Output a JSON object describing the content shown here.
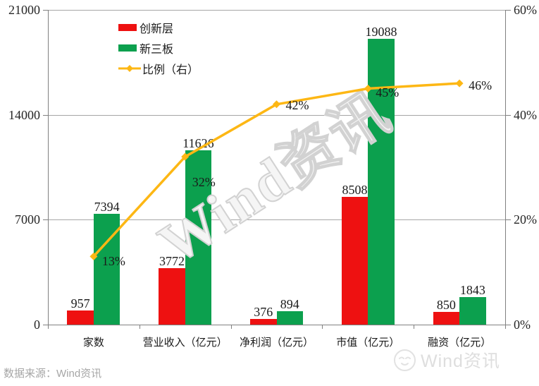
{
  "chart_data": {
    "type": "bar",
    "categories": [
      "家数",
      "营业收入（亿元）",
      "净利润（亿元）",
      "市值（亿元）",
      "融资（亿元）"
    ],
    "series": [
      {
        "name": "创新层",
        "type": "bar",
        "axis": "left",
        "color": "#ee1111",
        "values": [
          957,
          3772,
          376,
          8508,
          850
        ]
      },
      {
        "name": "新三板",
        "type": "bar",
        "axis": "left",
        "color": "#0ca04e",
        "values": [
          7394,
          11626,
          894,
          19088,
          1843
        ]
      },
      {
        "name": "比例（右）",
        "type": "line",
        "axis": "right",
        "color": "#fdb714",
        "values": [
          13,
          32,
          42,
          45,
          46
        ],
        "point_labels": [
          "13%",
          "32%",
          "42%",
          "45%",
          "46%"
        ]
      }
    ],
    "left_axis": {
      "min": 0,
      "max": 21000,
      "ticks": [
        0,
        7000,
        14000,
        21000
      ],
      "tick_labels": [
        "0",
        "7000",
        "14000",
        "21000"
      ]
    },
    "right_axis": {
      "min": 0,
      "max": 60,
      "ticks": [
        0,
        20,
        40,
        60
      ],
      "tick_labels": [
        "0%",
        "20%",
        "40%",
        "60%"
      ]
    },
    "grid": true,
    "legend_position": "top-left-inside"
  },
  "legend": {
    "items": [
      {
        "label": "创新层"
      },
      {
        "label": "新三板"
      },
      {
        "label": "比例（右）"
      }
    ]
  },
  "watermark_text": "Wind资讯",
  "footer": {
    "source_text": "数据来源：Wind资讯",
    "logo_text": "Wind资讯"
  },
  "colors": {
    "bar_red": "#ee1111",
    "bar_green": "#0ca04e",
    "line_gold": "#fdb714",
    "grid_gray": "#a6a6a6",
    "axis_gray": "#808080",
    "text_dark": "#1a1a1a",
    "footer_gray": "#a6a6a6",
    "watermark_gray": "#d2d2d2"
  }
}
